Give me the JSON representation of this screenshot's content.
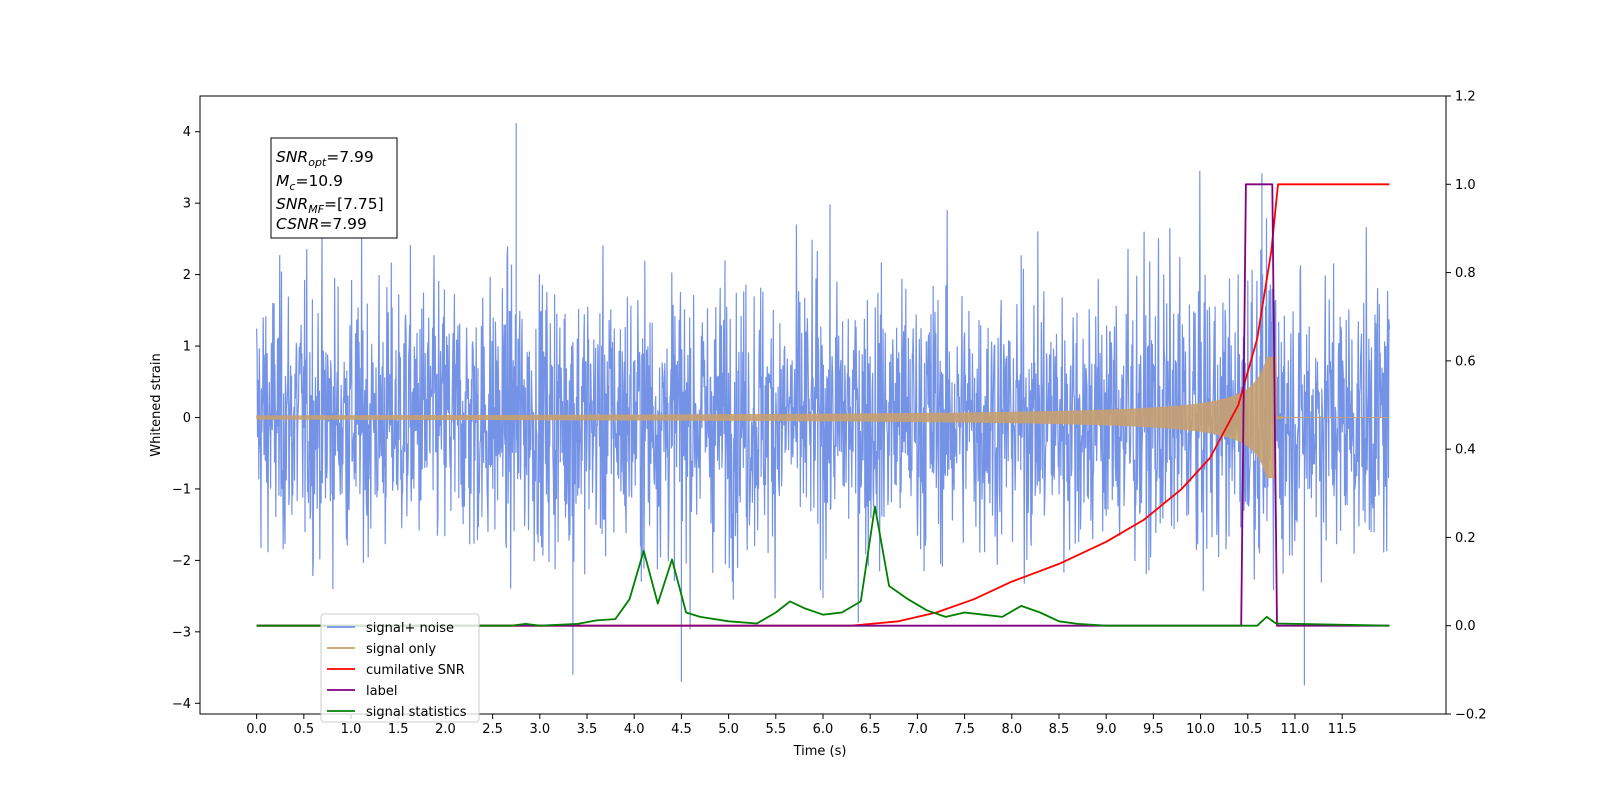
{
  "chart_data": {
    "type": "line",
    "xlabel": "Time (s)",
    "ylabel": "Whitened strain",
    "xlim": [
      -0.6,
      12.6
    ],
    "ylim_left": [
      -4.15,
      4.5
    ],
    "ylim_right": [
      -0.2,
      1.2
    ],
    "x_ticks": [
      "0.0",
      "0.5",
      "1.0",
      "1.5",
      "2.0",
      "2.5",
      "3.0",
      "3.5",
      "4.0",
      "4.5",
      "5.0",
      "5.5",
      "6.0",
      "6.5",
      "7.0",
      "7.5",
      "8.0",
      "8.5",
      "9.0",
      "9.5",
      "10.0",
      "10.5",
      "11.0",
      "11.5"
    ],
    "y_ticks_left": [
      "−4",
      "−3",
      "−2",
      "−1",
      "0",
      "1",
      "2",
      "3",
      "4"
    ],
    "y_ticks_right": [
      "−0.2",
      "0.0",
      "0.2",
      "0.4",
      "0.6",
      "0.8",
      "1.0",
      "1.2"
    ],
    "annotation": {
      "snr_opt": "7.99",
      "mc": "10.9",
      "snr_mf": "[7.75]",
      "csnr": "7.99"
    },
    "legend": {
      "placement": "lower left",
      "entries": [
        "signal+ noise",
        "signal only",
        "cumilative SNR",
        "label",
        "signal statistics"
      ]
    },
    "series": [
      {
        "name": "signal+ noise",
        "axis": "left",
        "color": "#7593e6",
        "x_range": [
          0,
          12
        ],
        "amplitude": 1.1,
        "peaks": [
          [
            2.75,
            4.12
          ],
          [
            10.65,
            3.42
          ],
          [
            4.5,
            -3.7
          ],
          [
            11.1,
            -3.75
          ],
          [
            3.35,
            -3.6
          ]
        ]
      },
      {
        "name": "signal only",
        "axis": "left",
        "color": "#c8a070",
        "x_range": [
          0,
          12
        ],
        "chirp_end": 10.8,
        "peak_amplitude": 0.85
      },
      {
        "name": "cumilative SNR",
        "axis": "right",
        "color": "#ff0000",
        "x": [
          0,
          6.3,
          6.8,
          7.2,
          7.6,
          8.0,
          8.5,
          9.0,
          9.4,
          9.8,
          10.1,
          10.4,
          10.6,
          10.75,
          10.82,
          12
        ],
        "y": [
          0,
          0,
          0.01,
          0.03,
          0.06,
          0.1,
          0.14,
          0.19,
          0.24,
          0.31,
          0.38,
          0.5,
          0.65,
          0.85,
          1.0,
          1.0
        ]
      },
      {
        "name": "label",
        "axis": "right",
        "color": "#800080",
        "x": [
          0,
          10.43,
          10.48,
          10.76,
          10.81,
          12
        ],
        "y": [
          0,
          0,
          1,
          1,
          0,
          0
        ]
      },
      {
        "name": "signal statistics",
        "axis": "right",
        "color": "#008000",
        "x": [
          0,
          2.7,
          2.85,
          3.0,
          3.4,
          3.6,
          3.8,
          3.95,
          4.1,
          4.25,
          4.4,
          4.55,
          4.7,
          5.0,
          5.3,
          5.5,
          5.65,
          5.8,
          6.0,
          6.2,
          6.4,
          6.55,
          6.7,
          6.9,
          7.1,
          7.3,
          7.5,
          7.7,
          7.9,
          8.1,
          8.3,
          8.5,
          8.7,
          9.0,
          10.6,
          10.7,
          10.8,
          12
        ],
        "y": [
          0,
          0,
          0.004,
          0,
          0.004,
          0.012,
          0.015,
          0.06,
          0.17,
          0.05,
          0.15,
          0.03,
          0.02,
          0.01,
          0.005,
          0.03,
          0.055,
          0.04,
          0.025,
          0.03,
          0.055,
          0.27,
          0.09,
          0.06,
          0.035,
          0.02,
          0.03,
          0.025,
          0.02,
          0.045,
          0.03,
          0.01,
          0.004,
          0,
          0,
          0.02,
          0.005,
          0
        ]
      }
    ]
  }
}
